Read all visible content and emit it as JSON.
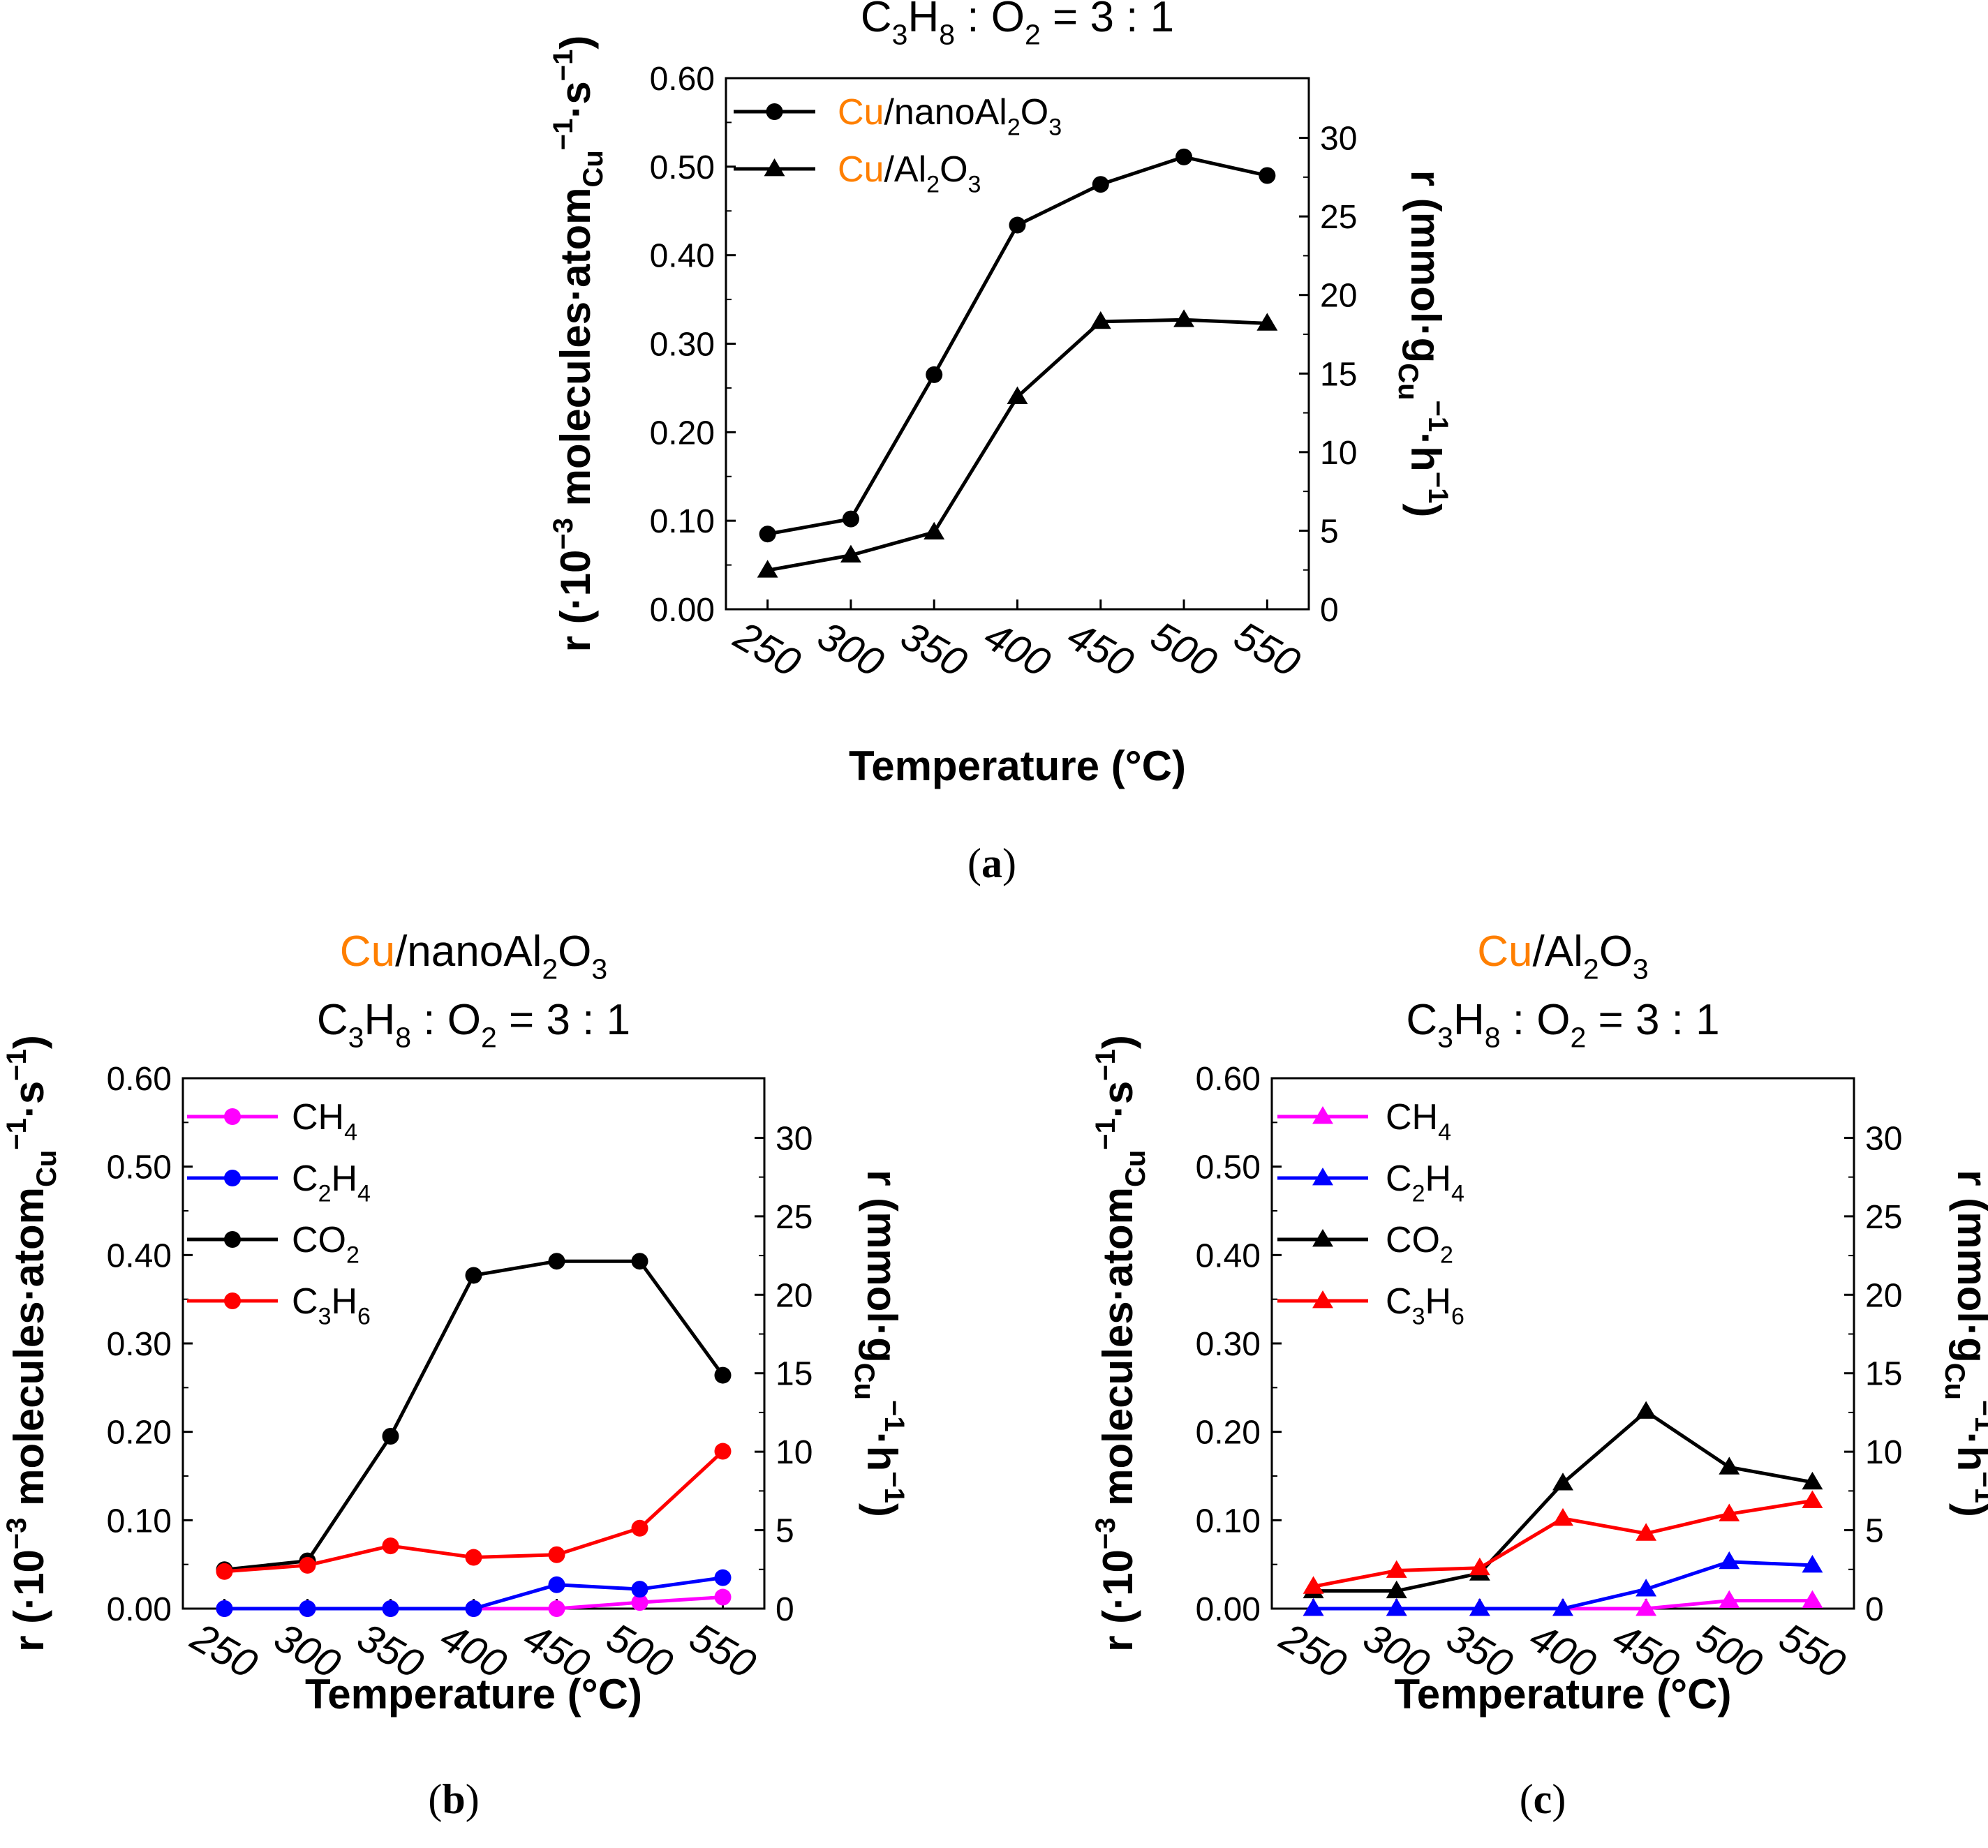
{
  "chart_data": [
    {
      "id": "a",
      "type": "line",
      "caption": "a",
      "title": "C3H8 : O2 = 3 : 1",
      "title_runs": [
        {
          "t": "C"
        },
        {
          "t": "3",
          "sub": true
        },
        {
          "t": "H"
        },
        {
          "t": "8",
          "sub": true
        },
        {
          "t": " : O"
        },
        {
          "t": "2",
          "sub": true
        },
        {
          "t": " = 3 : 1"
        }
      ],
      "xlabel": "Temperature (°C)",
      "ylabel": "r (·10−3 molecules·atomCu−1·s−1)",
      "ylabel_runs": [
        {
          "t": "r (·10"
        },
        {
          "t": "−3",
          "sup": true
        },
        {
          "t": " molecules·atom"
        },
        {
          "t": "Cu",
          "sub": true
        },
        {
          "t": "−1",
          "sup": true
        },
        {
          "t": "·s"
        },
        {
          "t": "−1",
          "sup": true
        },
        {
          "t": ")"
        }
      ],
      "y2label": "r (mmol·gCu−1·h−1)",
      "y2label_runs": [
        {
          "t": "r (mmol·g"
        },
        {
          "t": "Cu",
          "sub": true
        },
        {
          "t": "−1",
          "sup": true
        },
        {
          "t": "·h"
        },
        {
          "t": "−1",
          "sup": true
        },
        {
          "t": ")"
        }
      ],
      "x": [
        250,
        300,
        350,
        400,
        450,
        500,
        550
      ],
      "x_tick_labels": [
        "250",
        "300",
        "350",
        "400",
        "450",
        "500",
        "550"
      ],
      "xlim": [
        225,
        575
      ],
      "ylim": [
        0,
        0.6
      ],
      "y_ticks": [
        "0.00",
        "0.10",
        "0.20",
        "0.30",
        "0.40",
        "0.50",
        "0.60"
      ],
      "y2lim": [
        0,
        33.8
      ],
      "y2_ticks": [
        "0",
        "5",
        "10",
        "15",
        "20",
        "25",
        "30"
      ],
      "legend_position": "top-left",
      "series": [
        {
          "name": "Cu/nanoAl2O3",
          "label_runs": [
            {
              "t": "Cu",
              "color": "#ff7f00"
            },
            {
              "t": "/nanoAl"
            },
            {
              "t": "2",
              "sub": true
            },
            {
              "t": "O"
            },
            {
              "t": "3",
              "sub": true
            }
          ],
          "marker": "circle",
          "color": "#000000",
          "values": [
            0.085,
            0.102,
            0.265,
            0.434,
            0.48,
            0.511,
            0.49
          ]
        },
        {
          "name": "Cu/Al2O3",
          "label_runs": [
            {
              "t": "Cu",
              "color": "#ff7f00"
            },
            {
              "t": "/Al"
            },
            {
              "t": "2",
              "sub": true
            },
            {
              "t": "O"
            },
            {
              "t": "3",
              "sub": true
            }
          ],
          "marker": "triangle",
          "color": "#000000",
          "values": [
            0.044,
            0.061,
            0.087,
            0.24,
            0.325,
            0.327,
            0.323
          ]
        }
      ]
    },
    {
      "id": "b",
      "type": "line",
      "caption": "b",
      "title": "Cu/nanoAl2O3",
      "title_runs": [
        {
          "t": "Cu",
          "color": "#ff7f00"
        },
        {
          "t": "/nanoAl"
        },
        {
          "t": "2",
          "sub": true
        },
        {
          "t": "O"
        },
        {
          "t": "3",
          "sub": true
        }
      ],
      "subtitle": "C3H8 : O2 = 3 : 1",
      "subtitle_runs": [
        {
          "t": "C"
        },
        {
          "t": "3",
          "sub": true
        },
        {
          "t": "H"
        },
        {
          "t": "8",
          "sub": true
        },
        {
          "t": " : O"
        },
        {
          "t": "2",
          "sub": true
        },
        {
          "t": " = 3 : 1"
        }
      ],
      "xlabel": "Temperature (°C)",
      "ylabel": "r (·10−3 molecules·atomCu−1·s−1)",
      "ylabel_runs": [
        {
          "t": "r (·10"
        },
        {
          "t": "−3",
          "sup": true
        },
        {
          "t": " molecules·atom"
        },
        {
          "t": "Cu",
          "sub": true
        },
        {
          "t": "−1",
          "sup": true
        },
        {
          "t": "·s"
        },
        {
          "t": "−1",
          "sup": true
        },
        {
          "t": ")"
        }
      ],
      "y2label": "r (mmol·gCu−1·h−1)",
      "y2label_runs": [
        {
          "t": "r (mmol·g"
        },
        {
          "t": "Cu",
          "sub": true
        },
        {
          "t": "−1",
          "sup": true
        },
        {
          "t": "·h"
        },
        {
          "t": "−1",
          "sup": true
        },
        {
          "t": ")"
        }
      ],
      "x": [
        250,
        300,
        350,
        400,
        450,
        500,
        550
      ],
      "x_tick_labels": [
        "250",
        "300",
        "350",
        "400",
        "450",
        "500",
        "550"
      ],
      "xlim": [
        225,
        575
      ],
      "ylim": [
        0,
        0.6
      ],
      "y_ticks": [
        "0.00",
        "0.10",
        "0.20",
        "0.30",
        "0.40",
        "0.50",
        "0.60"
      ],
      "y2lim": [
        0,
        33.8
      ],
      "y2_ticks": [
        "0",
        "5",
        "10",
        "15",
        "20",
        "25",
        "30"
      ],
      "legend_position": "top-left",
      "series": [
        {
          "name": "CH4",
          "label_runs": [
            {
              "t": "CH"
            },
            {
              "t": "4",
              "sub": true
            }
          ],
          "marker": "circle",
          "color": "#ff00ff",
          "values": [
            0,
            0,
            0,
            0,
            0,
            0.007,
            0.013
          ]
        },
        {
          "name": "C2H4",
          "label_runs": [
            {
              "t": "C"
            },
            {
              "t": "2",
              "sub": true
            },
            {
              "t": "H"
            },
            {
              "t": "4",
              "sub": true
            }
          ],
          "marker": "circle",
          "color": "#0000ff",
          "values": [
            0,
            0,
            0,
            0,
            0.027,
            0.022,
            0.035
          ]
        },
        {
          "name": "CO2",
          "label_runs": [
            {
              "t": "CO"
            },
            {
              "t": "2",
              "sub": true
            }
          ],
          "marker": "circle",
          "color": "#000000",
          "values": [
            0.044,
            0.054,
            0.195,
            0.377,
            0.393,
            0.393,
            0.264
          ]
        },
        {
          "name": "C3H6",
          "label_runs": [
            {
              "t": "C"
            },
            {
              "t": "3",
              "sub": true
            },
            {
              "t": "H"
            },
            {
              "t": "6",
              "sub": true
            }
          ],
          "marker": "circle",
          "color": "#ff0000",
          "values": [
            0.042,
            0.049,
            0.071,
            0.058,
            0.061,
            0.091,
            0.178
          ]
        }
      ]
    },
    {
      "id": "c",
      "type": "line",
      "caption": "c",
      "title": "Cu/Al2O3",
      "title_runs": [
        {
          "t": "Cu",
          "color": "#ff7f00"
        },
        {
          "t": "/Al"
        },
        {
          "t": "2",
          "sub": true
        },
        {
          "t": "O"
        },
        {
          "t": "3",
          "sub": true
        }
      ],
      "subtitle": "C3H8 : O2 = 3 : 1",
      "subtitle_runs": [
        {
          "t": "C"
        },
        {
          "t": "3",
          "sub": true
        },
        {
          "t": "H"
        },
        {
          "t": "8",
          "sub": true
        },
        {
          "t": " : O"
        },
        {
          "t": "2",
          "sub": true
        },
        {
          "t": " = 3 : 1"
        }
      ],
      "xlabel": "Temperature (°C)",
      "ylabel": "r (·10−3 molecules·atomCu−1·s−1)",
      "ylabel_runs": [
        {
          "t": "r (·10"
        },
        {
          "t": "−3",
          "sup": true
        },
        {
          "t": " molecules·atom"
        },
        {
          "t": "Cu",
          "sub": true
        },
        {
          "t": "−1",
          "sup": true
        },
        {
          "t": "·s"
        },
        {
          "t": "−1",
          "sup": true
        },
        {
          "t": ")"
        }
      ],
      "y2label": "r (mmol·gCu−1·h−1)",
      "y2label_runs": [
        {
          "t": "r (mmol·g"
        },
        {
          "t": "Cu",
          "sub": true
        },
        {
          "t": "−1",
          "sup": true
        },
        {
          "t": "·h"
        },
        {
          "t": "−1",
          "sup": true
        },
        {
          "t": ")"
        }
      ],
      "x": [
        250,
        300,
        350,
        400,
        450,
        500,
        550
      ],
      "x_tick_labels": [
        "250",
        "300",
        "350",
        "400",
        "450",
        "500",
        "550"
      ],
      "xlim": [
        225,
        575
      ],
      "ylim": [
        0,
        0.6
      ],
      "y_ticks": [
        "0.00",
        "0.10",
        "0.20",
        "0.30",
        "0.40",
        "0.50",
        "0.60"
      ],
      "y2lim": [
        0,
        33.8
      ],
      "y2_ticks": [
        "0",
        "5",
        "10",
        "15",
        "20",
        "25",
        "30"
      ],
      "legend_position": "top-left",
      "series": [
        {
          "name": "CH4",
          "label_runs": [
            {
              "t": "CH"
            },
            {
              "t": "4",
              "sub": true
            }
          ],
          "marker": "triangle",
          "color": "#ff00ff",
          "values": [
            0,
            0,
            0,
            0,
            0,
            0.009,
            0.009
          ]
        },
        {
          "name": "C2H4",
          "label_runs": [
            {
              "t": "C"
            },
            {
              "t": "2",
              "sub": true
            },
            {
              "t": "H"
            },
            {
              "t": "4",
              "sub": true
            }
          ],
          "marker": "triangle",
          "color": "#0000ff",
          "values": [
            0,
            0,
            0,
            0,
            0.022,
            0.053,
            0.049
          ]
        },
        {
          "name": "CO2",
          "label_runs": [
            {
              "t": "CO"
            },
            {
              "t": "2",
              "sub": true
            }
          ],
          "marker": "triangle",
          "color": "#000000",
          "values": [
            0.02,
            0.02,
            0.04,
            0.142,
            0.223,
            0.16,
            0.143
          ]
        },
        {
          "name": "C3H6",
          "label_runs": [
            {
              "t": "C"
            },
            {
              "t": "3",
              "sub": true
            },
            {
              "t": "H"
            },
            {
              "t": "6",
              "sub": true
            }
          ],
          "marker": "triangle",
          "color": "#ff0000",
          "values": [
            0.025,
            0.043,
            0.046,
            0.102,
            0.085,
            0.107,
            0.122
          ]
        }
      ]
    }
  ]
}
